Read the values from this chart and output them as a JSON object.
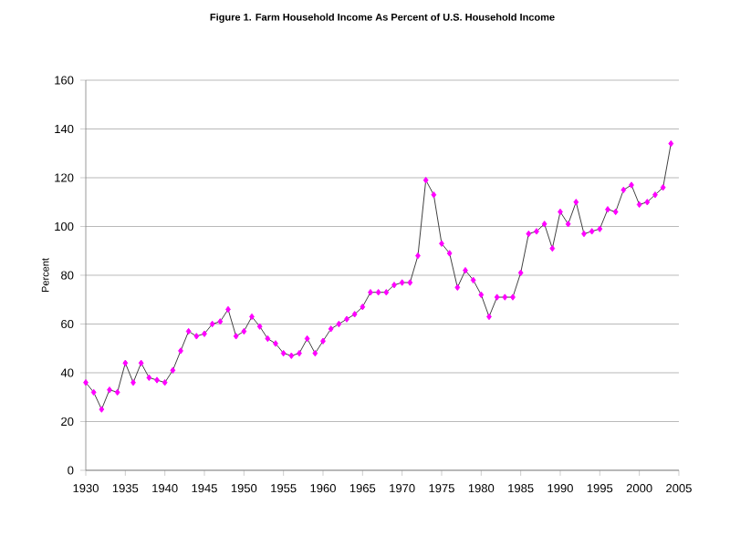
{
  "chart_data": {
    "type": "line",
    "title": "Figure 1. Farm Household Income As Percent of U.S. Household Income",
    "ylabel": "Percent",
    "x": [
      1930,
      1931,
      1932,
      1933,
      1934,
      1935,
      1936,
      1937,
      1938,
      1939,
      1940,
      1941,
      1942,
      1943,
      1944,
      1945,
      1946,
      1947,
      1948,
      1949,
      1950,
      1951,
      1952,
      1953,
      1954,
      1955,
      1956,
      1957,
      1958,
      1959,
      1960,
      1961,
      1962,
      1963,
      1964,
      1965,
      1966,
      1967,
      1968,
      1969,
      1970,
      1971,
      1972,
      1973,
      1974,
      1975,
      1976,
      1977,
      1978,
      1979,
      1980,
      1981,
      1982,
      1983,
      1984,
      1985,
      1986,
      1987,
      1988,
      1989,
      1990,
      1991,
      1992,
      1993,
      1994,
      1995,
      1996,
      1997,
      1998,
      1999,
      2000,
      2001,
      2002,
      2003,
      2004
    ],
    "series": [
      {
        "color": "#ff00ff",
        "values": [
          36,
          32,
          25,
          33,
          32,
          44,
          36,
          44,
          38,
          37,
          36,
          41,
          49,
          57,
          55,
          56,
          60,
          61,
          66,
          55,
          57,
          63,
          59,
          54,
          52,
          48,
          47,
          48,
          54,
          48,
          53,
          58,
          60,
          62,
          64,
          67,
          73,
          73,
          73,
          76,
          77,
          77,
          88,
          119,
          113,
          93,
          89,
          75,
          82,
          78,
          72,
          63,
          71,
          71,
          71,
          81,
          97,
          98,
          101,
          91,
          106,
          101,
          110,
          97,
          98,
          99,
          107,
          106,
          115,
          117,
          109,
          110,
          113,
          116,
          134
        ]
      }
    ],
    "xlim": [
      1930,
      2005
    ],
    "xticks": [
      1930,
      1935,
      1940,
      1945,
      1950,
      1955,
      1960,
      1965,
      1970,
      1975,
      1980,
      1985,
      1990,
      1995,
      2000,
      2005
    ],
    "ylim": [
      0,
      160
    ],
    "yticks": [
      0,
      20,
      40,
      60,
      80,
      100,
      120,
      140,
      160
    ],
    "grid": "y",
    "marker": "diamond",
    "line_style": "solid"
  }
}
